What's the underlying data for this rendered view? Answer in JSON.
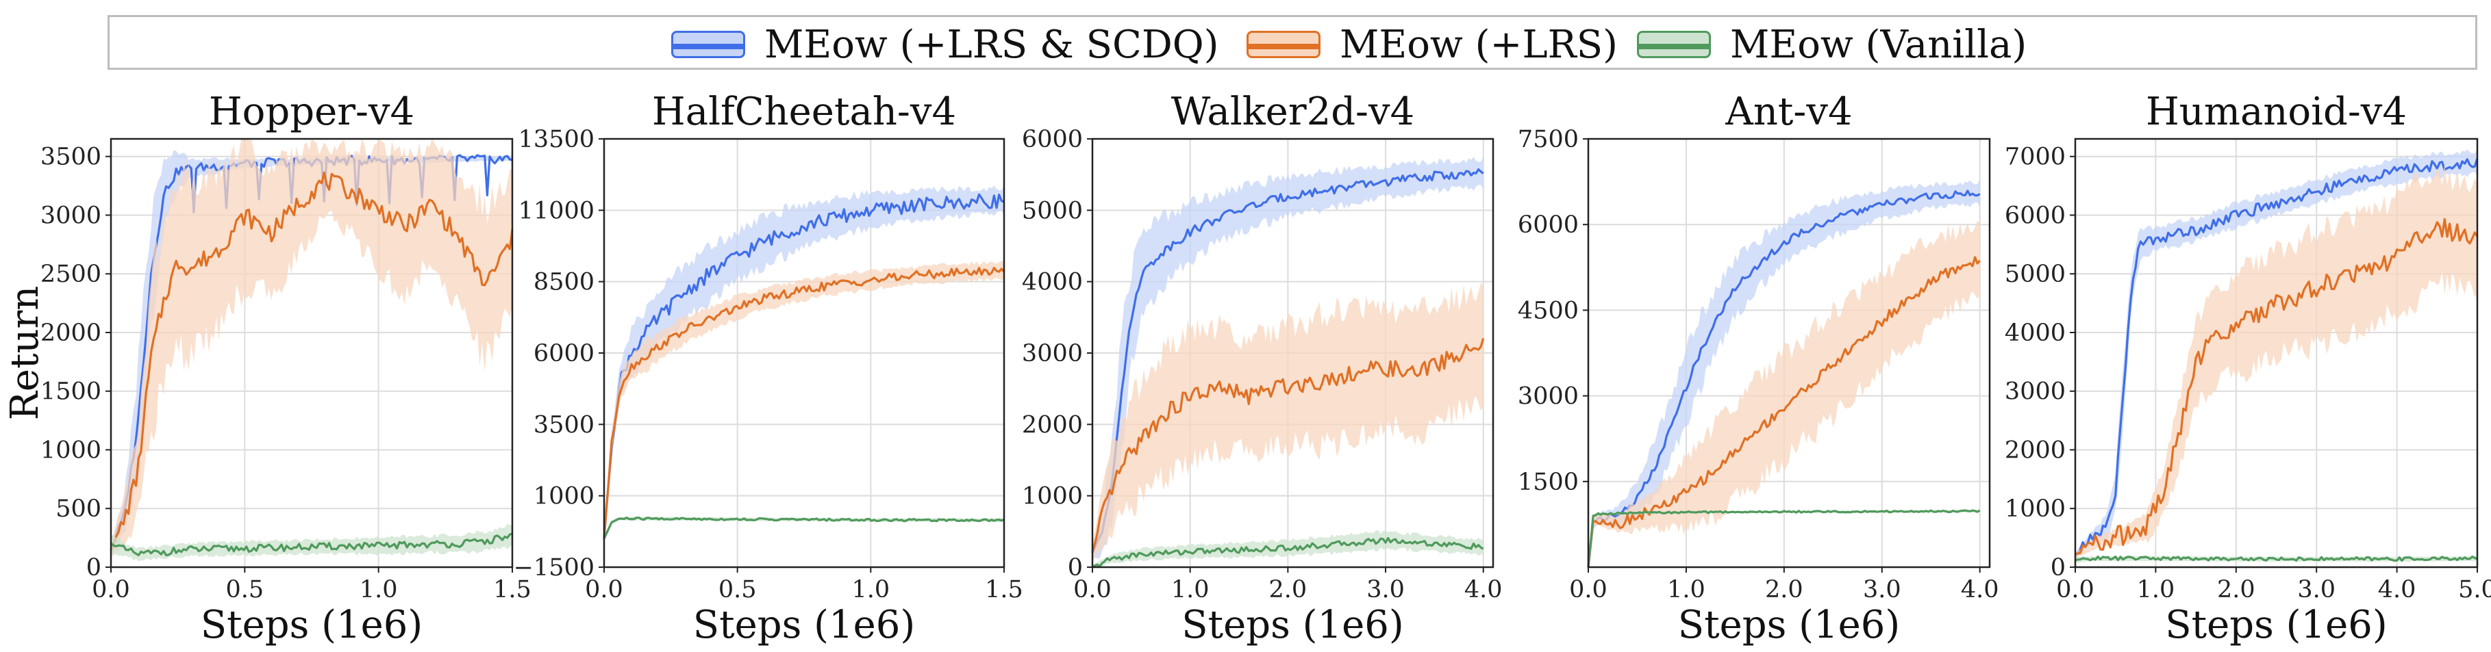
{
  "legend": {
    "items": [
      {
        "label": "MEow (+LRS & SCDQ)",
        "color": "#3f6ee8",
        "fill": "#c6d4f7"
      },
      {
        "label": "MEow (+LRS)",
        "color": "#e07024",
        "fill": "#f8d6bd"
      },
      {
        "label": "MEow (Vanilla)",
        "color": "#4f9a5c",
        "fill": "#cde3cf"
      }
    ]
  },
  "chart_data": [
    {
      "type": "line",
      "title": "Hopper-v4",
      "xlabel": "Steps (1e6)",
      "ylabel": "Return",
      "xlim": [
        0,
        1.5
      ],
      "ylim": [
        0,
        3650
      ],
      "xticks": [
        0.0,
        0.5,
        1.0,
        1.5
      ],
      "xtick_labels": [
        "0.0",
        "0.5",
        "1.0",
        "1.5"
      ],
      "yticks": [
        0,
        500,
        1000,
        1500,
        2000,
        2500,
        3000,
        3500
      ],
      "ytick_labels": [
        "0",
        "500",
        "1000",
        "1500",
        "2000",
        "2500",
        "3000",
        "3500"
      ],
      "grid": true,
      "series": [
        {
          "name": "MEow (+LRS & SCDQ)",
          "x": [
            0,
            0.05,
            0.1,
            0.15,
            0.2,
            0.25,
            0.3,
            0.4,
            0.5,
            0.6,
            0.8,
            1.0,
            1.2,
            1.4,
            1.5
          ],
          "y": [
            150,
            450,
            1200,
            2500,
            3200,
            3380,
            3400,
            3420,
            3440,
            3450,
            3460,
            3470,
            3470,
            3480,
            3480
          ],
          "spread": [
            50,
            150,
            500,
            500,
            300,
            150,
            80,
            60,
            40,
            30,
            25,
            20,
            20,
            20,
            20
          ]
        },
        {
          "name": "MEow (+LRS)",
          "x": [
            0,
            0.05,
            0.1,
            0.15,
            0.2,
            0.25,
            0.3,
            0.4,
            0.5,
            0.6,
            0.7,
            0.8,
            0.9,
            1.0,
            1.1,
            1.2,
            1.3,
            1.4,
            1.5
          ],
          "y": [
            150,
            400,
            800,
            1800,
            2300,
            2600,
            2550,
            2700,
            3000,
            2850,
            3100,
            3300,
            3200,
            3050,
            2900,
            3100,
            2800,
            2400,
            2800
          ],
          "spread": [
            60,
            200,
            400,
            650,
            700,
            750,
            700,
            650,
            600,
            550,
            450,
            300,
            350,
            500,
            600,
            500,
            550,
            650,
            550
          ]
        },
        {
          "name": "MEow (Vanilla)",
          "x": [
            0,
            0.05,
            0.1,
            0.2,
            0.3,
            0.5,
            0.7,
            0.9,
            1.0,
            1.1,
            1.3,
            1.4,
            1.5
          ],
          "y": [
            200,
            150,
            110,
            130,
            150,
            160,
            170,
            180,
            180,
            190,
            200,
            220,
            270
          ],
          "spread": [
            70,
            60,
            50,
            50,
            55,
            60,
            60,
            65,
            70,
            70,
            75,
            80,
            90
          ]
        }
      ]
    },
    {
      "type": "line",
      "title": "HalfCheetah-v4",
      "xlabel": "Steps (1e6)",
      "ylabel": "",
      "xlim": [
        0,
        1.5
      ],
      "ylim": [
        -1500,
        13500
      ],
      "xticks": [
        0.0,
        0.5,
        1.0,
        1.5
      ],
      "xtick_labels": [
        "0.0",
        "0.5",
        "1.0",
        "1.5"
      ],
      "yticks": [
        -1500,
        1000,
        3500,
        6000,
        8500,
        11000,
        13500
      ],
      "ytick_labels": [
        "−1500",
        "1000",
        "3500",
        "6000",
        "8500",
        "11000",
        "13500"
      ],
      "grid": true,
      "series": [
        {
          "name": "MEow (+LRS & SCDQ)",
          "x": [
            0,
            0.03,
            0.06,
            0.1,
            0.2,
            0.3,
            0.4,
            0.5,
            0.6,
            0.7,
            0.8,
            0.9,
            1.0,
            1.1,
            1.2,
            1.3,
            1.4,
            1.5
          ],
          "y": [
            -500,
            3000,
            5000,
            6000,
            7200,
            8100,
            8800,
            9400,
            9900,
            10300,
            10600,
            10800,
            11000,
            11100,
            11200,
            11250,
            11300,
            11350
          ],
          "spread": [
            200,
            400,
            600,
            800,
            900,
            1000,
            950,
            900,
            850,
            800,
            700,
            650,
            600,
            550,
            500,
            500,
            450,
            450
          ]
        },
        {
          "name": "MEow (+LRS)",
          "x": [
            0,
            0.03,
            0.06,
            0.1,
            0.2,
            0.3,
            0.4,
            0.5,
            0.6,
            0.7,
            0.8,
            0.9,
            1.0,
            1.1,
            1.2,
            1.3,
            1.4,
            1.5
          ],
          "y": [
            -500,
            3000,
            4800,
            5500,
            6200,
            6800,
            7200,
            7600,
            7900,
            8100,
            8300,
            8450,
            8550,
            8650,
            8750,
            8800,
            8850,
            8900
          ],
          "spread": [
            200,
            300,
            400,
            500,
            500,
            450,
            400,
            400,
            380,
            360,
            350,
            330,
            320,
            300,
            300,
            300,
            300,
            300
          ]
        },
        {
          "name": "MEow (Vanilla)",
          "x": [
            0,
            0.03,
            0.06,
            0.1,
            0.3,
            0.5,
            0.7,
            0.9,
            1.1,
            1.3,
            1.5
          ],
          "y": [
            -500,
            100,
            200,
            200,
            190,
            180,
            170,
            160,
            150,
            150,
            150
          ],
          "spread": [
            60,
            60,
            60,
            60,
            60,
            60,
            60,
            60,
            60,
            60,
            60
          ]
        }
      ]
    },
    {
      "type": "line",
      "title": "Walker2d-v4",
      "xlabel": "Steps (1e6)",
      "ylabel": "",
      "xlim": [
        0,
        4.1
      ],
      "ylim": [
        0,
        6000
      ],
      "xticks": [
        0.0,
        1.0,
        2.0,
        3.0,
        4.0
      ],
      "xtick_labels": [
        "0.0",
        "1.0",
        "2.0",
        "3.0",
        "4.0"
      ],
      "yticks": [
        0,
        1000,
        2000,
        3000,
        4000,
        5000,
        6000
      ],
      "ytick_labels": [
        "0",
        "1000",
        "2000",
        "3000",
        "4000",
        "5000",
        "6000"
      ],
      "grid": true,
      "series": [
        {
          "name": "MEow (+LRS & SCDQ)",
          "x": [
            0,
            0.1,
            0.2,
            0.3,
            0.4,
            0.5,
            0.7,
            1.0,
            1.3,
            1.6,
            2.0,
            2.5,
            3.0,
            3.5,
            4.0
          ],
          "y": [
            200,
            500,
            1200,
            2500,
            3500,
            4100,
            4400,
            4700,
            4900,
            5050,
            5200,
            5300,
            5400,
            5480,
            5520
          ],
          "spread": [
            100,
            300,
            600,
            800,
            700,
            600,
            500,
            400,
            350,
            300,
            280,
            250,
            220,
            200,
            200
          ]
        },
        {
          "name": "MEow (+LRS)",
          "x": [
            0,
            0.1,
            0.2,
            0.3,
            0.5,
            0.7,
            1.0,
            1.3,
            1.6,
            2.0,
            2.3,
            2.6,
            3.0,
            3.3,
            3.6,
            4.0
          ],
          "y": [
            200,
            700,
            1100,
            1400,
            1800,
            2100,
            2400,
            2500,
            2400,
            2550,
            2600,
            2700,
            2800,
            2700,
            2900,
            3100
          ],
          "spread": [
            100,
            400,
            600,
            700,
            800,
            850,
            900,
            850,
            800,
            850,
            900,
            900,
            850,
            850,
            800,
            800
          ]
        },
        {
          "name": "MEow (Vanilla)",
          "x": [
            0,
            0.2,
            0.5,
            1.0,
            1.5,
            2.0,
            2.5,
            3.0,
            3.5,
            4.0
          ],
          "y": [
            0,
            120,
            180,
            220,
            240,
            270,
            320,
            380,
            330,
            280
          ],
          "spread": [
            30,
            60,
            80,
            90,
            100,
            110,
            120,
            120,
            110,
            100
          ]
        }
      ]
    },
    {
      "type": "line",
      "title": "Ant-v4",
      "xlabel": "Steps (1e6)",
      "ylabel": "",
      "xlim": [
        0,
        4.1
      ],
      "ylim": [
        0,
        7500
      ],
      "xticks": [
        0.0,
        1.0,
        2.0,
        3.0,
        4.0
      ],
      "xtick_labels": [
        "0.0",
        "1.0",
        "2.0",
        "3.0",
        "4.0"
      ],
      "yticks": [
        1500,
        3000,
        4500,
        6000,
        7500
      ],
      "ytick_labels": [
        "1500",
        "3000",
        "4500",
        "6000",
        "7500"
      ],
      "grid": true,
      "series": [
        {
          "name": "MEow (+LRS & SCDQ)",
          "x": [
            0,
            0.05,
            0.1,
            0.3,
            0.5,
            0.7,
            0.9,
            1.1,
            1.3,
            1.5,
            1.8,
            2.1,
            2.5,
            3.0,
            3.5,
            4.0
          ],
          "y": [
            0,
            800,
            850,
            900,
            1200,
            1800,
            2700,
            3600,
            4300,
            4900,
            5400,
            5800,
            6100,
            6350,
            6500,
            6550
          ],
          "spread": [
            0,
            100,
            100,
            150,
            300,
            500,
            600,
            650,
            600,
            500,
            400,
            350,
            300,
            250,
            200,
            200
          ]
        },
        {
          "name": "MEow (+LRS)",
          "x": [
            0,
            0.05,
            0.1,
            0.3,
            0.5,
            0.8,
            1.0,
            1.3,
            1.6,
            2.0,
            2.4,
            2.8,
            3.2,
            3.6,
            4.0
          ],
          "y": [
            0,
            800,
            850,
            750,
            900,
            1100,
            1300,
            1700,
            2200,
            2800,
            3400,
            4000,
            4600,
            5100,
            5400
          ],
          "spread": [
            0,
            100,
            100,
            150,
            250,
            400,
            600,
            800,
            900,
            950,
            900,
            850,
            800,
            700,
            600
          ]
        },
        {
          "name": "MEow (Vanilla)",
          "x": [
            0,
            0.05,
            0.1,
            0.5,
            1.0,
            2.0,
            3.0,
            4.0
          ],
          "y": [
            0,
            900,
            930,
            950,
            960,
            970,
            975,
            980
          ],
          "spread": [
            0,
            30,
            20,
            20,
            20,
            20,
            20,
            20
          ]
        }
      ]
    },
    {
      "type": "line",
      "title": "Humanoid-v4",
      "xlabel": "Steps (1e6)",
      "ylabel": "",
      "xlim": [
        0,
        5.0
      ],
      "ylim": [
        0,
        7300
      ],
      "xticks": [
        0.0,
        1.0,
        2.0,
        3.0,
        4.0,
        5.0
      ],
      "xtick_labels": [
        "0.0",
        "1.0",
        "2.0",
        "3.0",
        "4.0",
        "5.0"
      ],
      "yticks": [
        0,
        1000,
        2000,
        3000,
        4000,
        5000,
        6000,
        7000
      ],
      "ytick_labels": [
        "0",
        "1000",
        "2000",
        "3000",
        "4000",
        "5000",
        "6000",
        "7000"
      ],
      "grid": true,
      "series": [
        {
          "name": "MEow (+LRS & SCDQ)",
          "x": [
            0,
            0.2,
            0.4,
            0.5,
            0.6,
            0.7,
            0.8,
            1.0,
            1.5,
            2.0,
            2.5,
            3.0,
            3.5,
            4.0,
            4.5,
            5.0
          ],
          "y": [
            200,
            500,
            700,
            1300,
            3000,
            4800,
            5500,
            5600,
            5750,
            6000,
            6200,
            6400,
            6600,
            6750,
            6850,
            6900
          ],
          "spread": [
            50,
            100,
            200,
            400,
            500,
            400,
            250,
            200,
            200,
            200,
            200,
            200,
            200,
            200,
            200,
            200
          ]
        },
        {
          "name": "MEow (+LRS)",
          "x": [
            0,
            0.3,
            0.6,
            0.9,
            1.1,
            1.3,
            1.5,
            1.8,
            2.1,
            2.5,
            2.9,
            3.3,
            3.7,
            4.1,
            4.5,
            5.0
          ],
          "y": [
            200,
            450,
            550,
            700,
            1300,
            2300,
            3500,
            4000,
            4200,
            4500,
            4700,
            4900,
            5100,
            5400,
            5800,
            5600
          ],
          "spread": [
            50,
            100,
            150,
            250,
            400,
            600,
            700,
            800,
            900,
            900,
            950,
            950,
            1000,
            1000,
            900,
            900
          ]
        },
        {
          "name": "MEow (Vanilla)",
          "x": [
            0,
            0.2,
            0.5,
            1.0,
            2.0,
            3.0,
            4.0,
            5.0
          ],
          "y": [
            120,
            150,
            150,
            150,
            140,
            140,
            140,
            150
          ],
          "spread": [
            40,
            40,
            40,
            40,
            40,
            40,
            40,
            40
          ]
        }
      ]
    }
  ]
}
